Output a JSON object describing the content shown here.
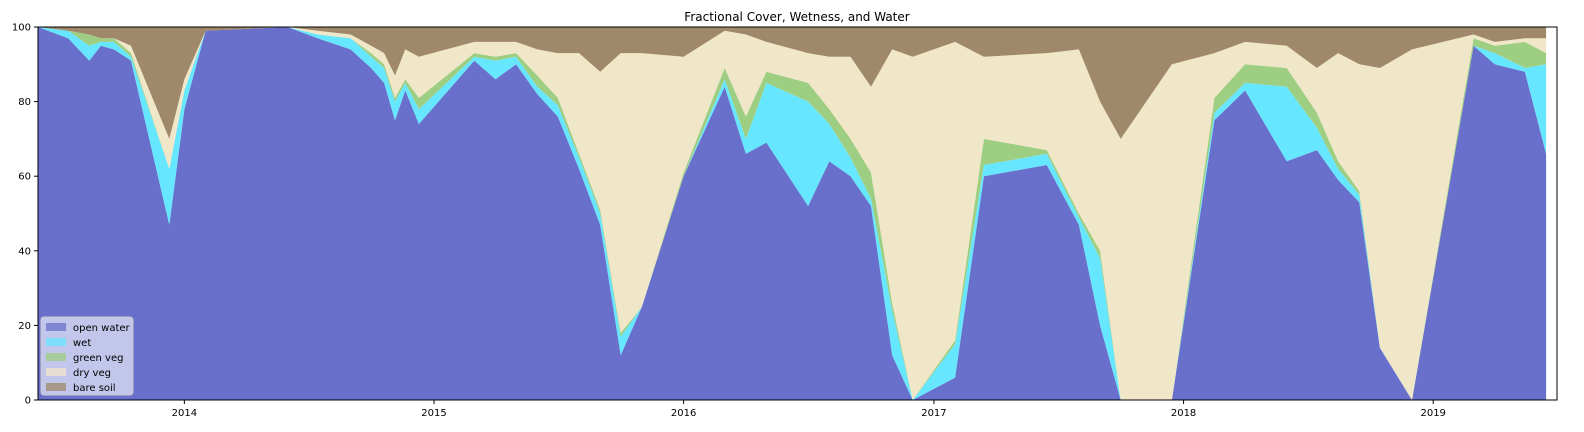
{
  "chart_data": {
    "type": "area",
    "stacked": true,
    "title": "Fractional Cover, Wetness, and Water",
    "xlabel": "",
    "ylabel": "",
    "ylim": [
      0,
      100
    ],
    "yticks": [
      0,
      20,
      40,
      60,
      80,
      100
    ],
    "xlim": [
      "2013-06-01",
      "2019-07-01"
    ],
    "xticks": [
      {
        "date": "2014-01-01",
        "label": "2014"
      },
      {
        "date": "2015-01-01",
        "label": "2015"
      },
      {
        "date": "2016-01-01",
        "label": "2016"
      },
      {
        "date": "2017-01-01",
        "label": "2017"
      },
      {
        "date": "2018-01-01",
        "label": "2018"
      },
      {
        "date": "2019-01-01",
        "label": "2019"
      }
    ],
    "legend_position": "lower-left",
    "x": [
      "2013-06-01",
      "2013-07-15",
      "2013-08-15",
      "2013-09-01",
      "2013-09-20",
      "2013-10-15",
      "2013-12-10",
      "2014-01-01",
      "2014-02-01",
      "2014-06-01",
      "2014-07-15",
      "2014-09-01",
      "2014-10-01",
      "2014-10-20",
      "2014-11-05",
      "2014-11-20",
      "2014-12-10",
      "2015-03-01",
      "2015-04-01",
      "2015-05-01",
      "2015-06-01",
      "2015-07-01",
      "2015-08-01",
      "2015-09-01",
      "2015-10-01",
      "2015-11-01",
      "2016-01-01",
      "2016-03-01",
      "2016-04-01",
      "2016-05-01",
      "2016-07-01",
      "2016-08-01",
      "2016-09-01",
      "2016-10-01",
      "2016-11-01",
      "2016-12-01",
      "2017-02-01",
      "2017-03-15",
      "2017-06-15",
      "2017-08-01",
      "2017-09-01",
      "2017-10-01",
      "2017-12-15",
      "2018-02-15",
      "2018-04-01",
      "2018-06-01",
      "2018-07-15",
      "2018-08-15",
      "2018-09-15",
      "2018-10-15",
      "2018-12-01",
      "2019-03-01",
      "2019-04-01",
      "2019-05-15",
      "2019-06-15"
    ],
    "series": [
      {
        "name": "open water",
        "color": "#6870cb",
        "values": [
          100,
          97,
          91,
          95,
          94,
          91,
          47,
          78,
          99,
          100,
          97,
          94,
          89,
          85,
          75,
          83,
          74,
          91,
          86,
          90,
          82,
          76,
          62,
          47,
          12,
          25,
          60,
          84,
          66,
          69,
          52,
          64,
          60,
          52,
          12,
          0,
          6,
          60,
          63,
          47,
          20,
          0,
          0,
          75,
          83,
          64,
          67,
          59,
          53,
          14,
          0,
          95,
          90,
          88,
          66
        ]
      },
      {
        "name": "wet",
        "color": "#66e6ff",
        "values": [
          0,
          2,
          4,
          1,
          2,
          1,
          15,
          5,
          0,
          0,
          1,
          3,
          3,
          4,
          5,
          2,
          4,
          1,
          5,
          2,
          2,
          3,
          3,
          3,
          5,
          0,
          0,
          2,
          4,
          16,
          28,
          10,
          5,
          2,
          12,
          0,
          9,
          3,
          3,
          2,
          18,
          0,
          0,
          2,
          2,
          20,
          6,
          3,
          2,
          0,
          0,
          0,
          3,
          1,
          24
        ]
      },
      {
        "name": "green veg",
        "color": "#9ece82",
        "values": [
          0,
          0,
          3,
          1,
          1,
          1,
          0,
          0,
          0,
          0,
          0,
          0,
          1,
          1,
          1,
          1,
          3,
          1,
          1,
          1,
          3,
          2,
          1,
          1,
          1,
          0,
          1,
          3,
          6,
          3,
          5,
          4,
          5,
          7,
          2,
          0,
          1,
          7,
          1,
          1,
          2,
          0,
          0,
          4,
          5,
          5,
          4,
          2,
          1,
          0,
          0,
          2,
          2,
          7,
          3
        ]
      },
      {
        "name": "dry veg",
        "color": "#f0e6c8",
        "values": [
          0,
          0,
          0,
          0,
          0,
          2,
          8,
          3,
          0,
          0,
          1,
          1,
          2,
          3,
          6,
          8,
          11,
          3,
          4,
          3,
          7,
          12,
          27,
          37,
          75,
          68,
          31,
          10,
          22,
          8,
          8,
          14,
          22,
          23,
          68,
          92,
          80,
          22,
          26,
          44,
          40,
          70,
          90,
          12,
          6,
          6,
          12,
          29,
          34,
          75,
          94,
          1,
          1,
          1,
          4
        ]
      },
      {
        "name": "bare soil",
        "color": "#a0886a",
        "values": [
          0,
          1,
          2,
          3,
          3,
          5,
          30,
          14,
          1,
          0,
          1,
          2,
          5,
          7,
          13,
          6,
          8,
          4,
          4,
          4,
          6,
          7,
          7,
          12,
          7,
          7,
          8,
          1,
          2,
          4,
          7,
          8,
          8,
          16,
          6,
          8,
          4,
          8,
          7,
          6,
          20,
          30,
          10,
          7,
          4,
          5,
          11,
          7,
          10,
          11,
          6,
          2,
          4,
          3,
          3
        ]
      }
    ]
  }
}
